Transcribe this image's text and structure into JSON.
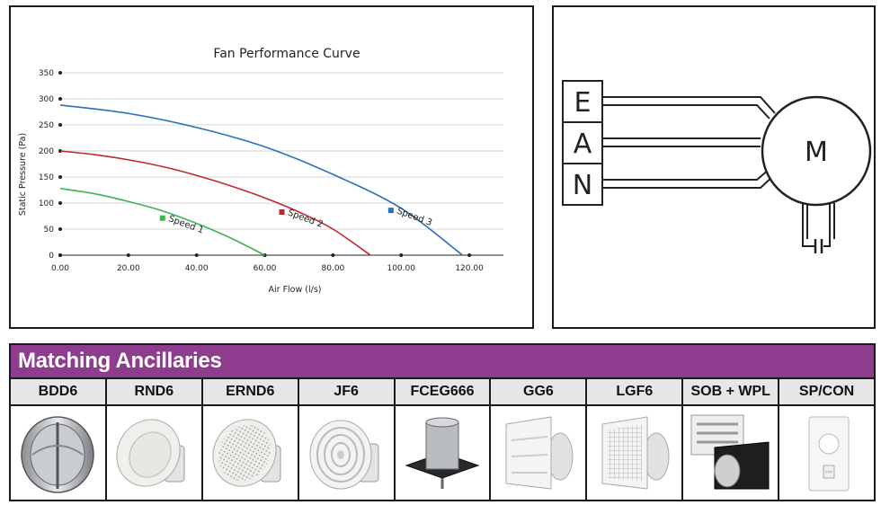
{
  "chart_data": {
    "type": "line",
    "title": "Fan Performance Curve",
    "xlabel": "Air Flow (l/s)",
    "ylabel": "Static Pressure (Pa)",
    "xlim": [
      0,
      130
    ],
    "ylim": [
      0,
      350
    ],
    "xticks": [
      "0.00",
      "20.00",
      "40.00",
      "60.00",
      "80.00",
      "100.00",
      "120.00"
    ],
    "yticks": [
      "0",
      "50",
      "100",
      "150",
      "200",
      "250",
      "300",
      "350"
    ],
    "grid": true,
    "series": [
      {
        "name": "Speed 1",
        "color": "#3cb44b",
        "x": [
          0,
          10,
          20,
          30,
          40,
          50,
          60
        ],
        "y": [
          128,
          118,
          103,
          85,
          61,
          33,
          0
        ]
      },
      {
        "name": "Speed 2",
        "color": "#c1272d",
        "x": [
          0,
          10,
          20,
          30,
          40,
          50,
          60,
          70,
          80,
          91
        ],
        "y": [
          200,
          193,
          183,
          170,
          153,
          133,
          110,
          83,
          50,
          0
        ]
      },
      {
        "name": "Speed 3",
        "color": "#2c6fbb",
        "x": [
          0,
          20,
          40,
          60,
          80,
          100,
          118
        ],
        "y": [
          288,
          272,
          245,
          208,
          155,
          90,
          0
        ]
      }
    ]
  },
  "wiring": {
    "terminals": [
      "E",
      "A",
      "N"
    ],
    "motor": "M"
  },
  "ancillaries": {
    "title": "Matching Ancillaries",
    "items": [
      {
        "label": "BDD6",
        "icon": "backdraft-damper-icon"
      },
      {
        "label": "RND6",
        "icon": "round-diffuser-icon"
      },
      {
        "label": "ERND6",
        "icon": "round-grille-icon"
      },
      {
        "label": "JF6",
        "icon": "jet-fan-diffuser-icon"
      },
      {
        "label": "FCEG666",
        "icon": "fire-collar-icon"
      },
      {
        "label": "GG6",
        "icon": "gravity-grille-icon"
      },
      {
        "label": "LGF6",
        "icon": "louvre-grille-icon"
      },
      {
        "label": "SOB + WPL",
        "icon": "soffit-box-icon"
      },
      {
        "label": "SP/CON",
        "icon": "speed-controller-icon"
      }
    ]
  },
  "colors": {
    "header": "#8e3c8e",
    "speed1": "#3cb44b",
    "speed2": "#c1272d",
    "speed3": "#2c6fbb"
  }
}
